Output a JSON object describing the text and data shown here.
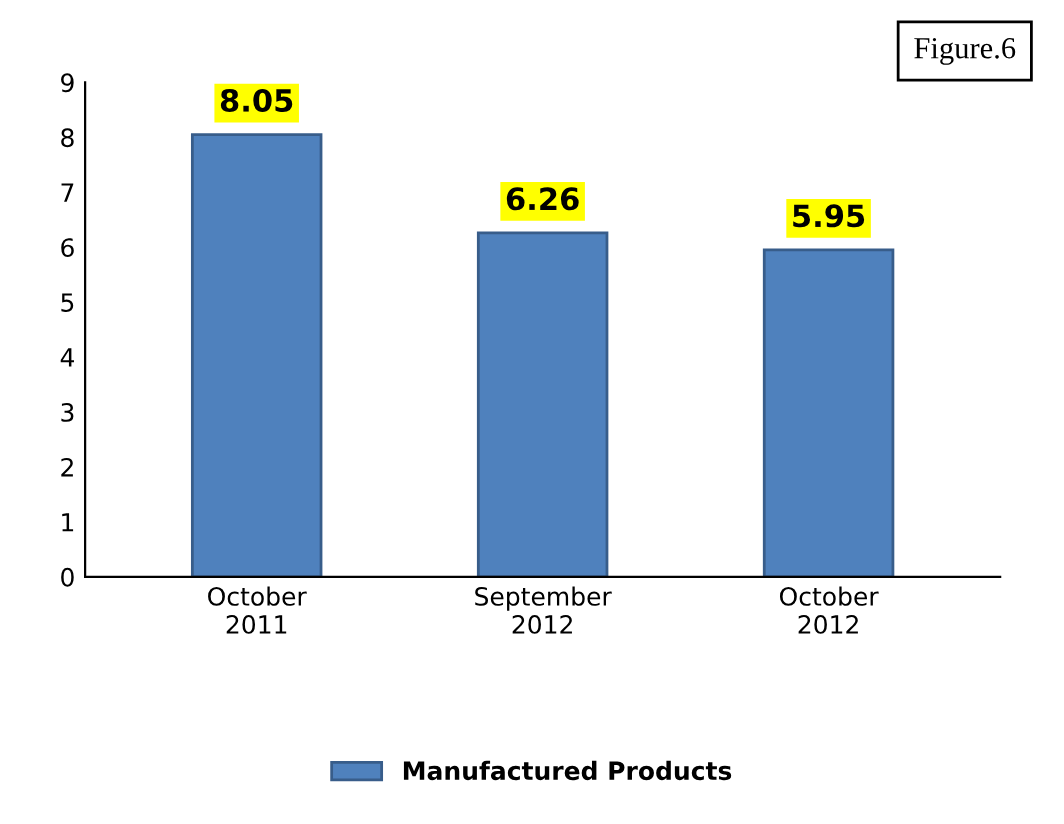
{
  "chart_data": {
    "type": "bar",
    "title": "Figure.6",
    "categories": [
      "October\n2011",
      "September\n2012",
      "October\n2012"
    ],
    "series": [
      {
        "name": "Manufactured Products",
        "color": "#4f81bd",
        "values": [
          8.05,
          6.26,
          5.95
        ]
      }
    ],
    "ylim": [
      0,
      9
    ],
    "yticks": [
      0,
      1,
      2,
      3,
      4,
      5,
      6,
      7,
      8,
      9
    ],
    "data_labels": true,
    "legend": "bottom",
    "grid": false
  }
}
